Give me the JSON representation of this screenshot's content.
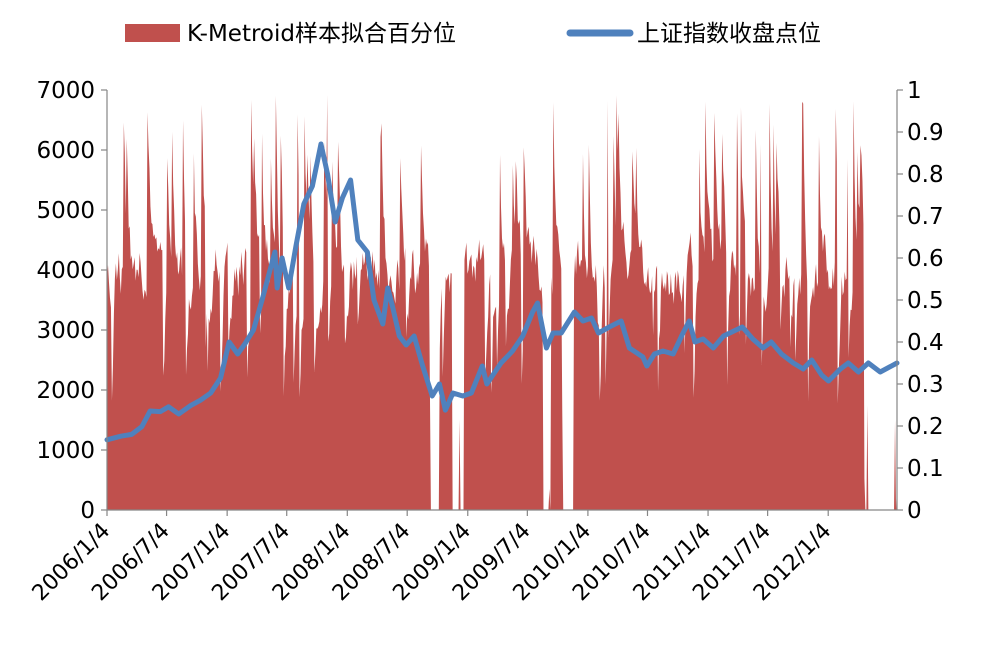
{
  "chart_data": {
    "type": "area+line",
    "title": "",
    "legend": {
      "placement": "top",
      "entries": [
        {
          "name": "K-Metroid样本拟合百分位",
          "kind": "area",
          "color": "#C0504D"
        },
        {
          "name": "上证指数收盘点位",
          "kind": "line",
          "color": "#4F81BD"
        }
      ]
    },
    "x_axis": {
      "type": "date",
      "range": [
        "2006-01-04",
        "2012-07-31"
      ],
      "tick_labels": [
        "2006/1/4",
        "2006/7/4",
        "2007/1/4",
        "2007/7/4",
        "2008/1/4",
        "2008/7/4",
        "2009/1/4",
        "2009/7/4",
        "2010/1/4",
        "2010/7/4",
        "2011/1/4",
        "2011/7/4",
        "2012/1/4"
      ],
      "tick_dates": [
        "2006-01-04",
        "2006-07-04",
        "2007-01-04",
        "2007-07-04",
        "2008-01-04",
        "2008-07-04",
        "2009-01-04",
        "2009-07-04",
        "2010-01-04",
        "2010-07-04",
        "2011-01-04",
        "2011-07-04",
        "2012-01-04"
      ]
    },
    "y_left": {
      "range": [
        0,
        7000
      ],
      "ticks": [
        "0",
        "1000",
        "2000",
        "3000",
        "4000",
        "5000",
        "6000",
        "7000"
      ]
    },
    "y_right": {
      "range": [
        0,
        1
      ],
      "ticks": [
        "0",
        "0.1",
        "0.2",
        "0.3",
        "0.4",
        "0.5",
        "0.6",
        "0.7",
        "0.8",
        "0.9",
        "1"
      ]
    },
    "grid": false,
    "series": [
      {
        "name": "上证指数收盘点位",
        "axis": "left",
        "color": "#4F81BD",
        "points": [
          [
            "2006-01-04",
            1170
          ],
          [
            "2006-02-15",
            1230
          ],
          [
            "2006-03-20",
            1260
          ],
          [
            "2006-04-20",
            1390
          ],
          [
            "2006-05-15",
            1650
          ],
          [
            "2006-06-15",
            1640
          ],
          [
            "2006-07-10",
            1720
          ],
          [
            "2006-08-10",
            1600
          ],
          [
            "2006-09-15",
            1740
          ],
          [
            "2006-10-15",
            1830
          ],
          [
            "2006-11-15",
            1950
          ],
          [
            "2006-12-15",
            2200
          ],
          [
            "2007-01-10",
            2800
          ],
          [
            "2007-02-05",
            2600
          ],
          [
            "2007-02-27",
            2770
          ],
          [
            "2007-03-25",
            3000
          ],
          [
            "2007-04-20",
            3500
          ],
          [
            "2007-05-29",
            4300
          ],
          [
            "2007-06-05",
            3700
          ],
          [
            "2007-06-20",
            4200
          ],
          [
            "2007-07-10",
            3700
          ],
          [
            "2007-08-01",
            4400
          ],
          [
            "2007-08-25",
            5100
          ],
          [
            "2007-09-20",
            5400
          ],
          [
            "2007-10-16",
            6100
          ],
          [
            "2007-11-05",
            5600
          ],
          [
            "2007-11-28",
            4800
          ],
          [
            "2007-12-20",
            5200
          ],
          [
            "2008-01-14",
            5500
          ],
          [
            "2008-02-05",
            4500
          ],
          [
            "2008-03-05",
            4300
          ],
          [
            "2008-03-25",
            3500
          ],
          [
            "2008-04-21",
            3100
          ],
          [
            "2008-05-06",
            3700
          ],
          [
            "2008-05-20",
            3400
          ],
          [
            "2008-06-10",
            2900
          ],
          [
            "2008-07-01",
            2750
          ],
          [
            "2008-07-25",
            2900
          ],
          [
            "2008-08-20",
            2400
          ],
          [
            "2008-09-18",
            1900
          ],
          [
            "2008-10-10",
            2100
          ],
          [
            "2008-10-28",
            1664
          ],
          [
            "2008-11-20",
            1950
          ],
          [
            "2008-12-20",
            1900
          ],
          [
            "2009-01-15",
            1950
          ],
          [
            "2009-02-17",
            2400
          ],
          [
            "2009-03-03",
            2100
          ],
          [
            "2009-04-15",
            2450
          ],
          [
            "2009-05-20",
            2650
          ],
          [
            "2009-06-20",
            2900
          ],
          [
            "2009-07-20",
            3300
          ],
          [
            "2009-08-04",
            3450
          ],
          [
            "2009-08-31",
            2700
          ],
          [
            "2009-09-20",
            2950
          ],
          [
            "2009-10-15",
            2950
          ],
          [
            "2009-11-24",
            3300
          ],
          [
            "2009-12-20",
            3150
          ],
          [
            "2010-01-15",
            3200
          ],
          [
            "2010-02-05",
            2950
          ],
          [
            "2010-03-10",
            3050
          ],
          [
            "2010-04-15",
            3150
          ],
          [
            "2010-05-10",
            2700
          ],
          [
            "2010-06-20",
            2550
          ],
          [
            "2010-07-02",
            2400
          ],
          [
            "2010-07-25",
            2600
          ],
          [
            "2010-08-20",
            2650
          ],
          [
            "2010-09-20",
            2600
          ],
          [
            "2010-10-20",
            2950
          ],
          [
            "2010-11-08",
            3150
          ],
          [
            "2010-11-25",
            2800
          ],
          [
            "2010-12-20",
            2850
          ],
          [
            "2011-01-20",
            2700
          ],
          [
            "2011-02-20",
            2900
          ],
          [
            "2011-04-18",
            3050
          ],
          [
            "2011-05-20",
            2850
          ],
          [
            "2011-06-20",
            2700
          ],
          [
            "2011-07-15",
            2800
          ],
          [
            "2011-08-15",
            2600
          ],
          [
            "2011-09-20",
            2450
          ],
          [
            "2011-10-20",
            2350
          ],
          [
            "2011-11-15",
            2500
          ],
          [
            "2011-12-15",
            2250
          ],
          [
            "2012-01-05",
            2150
          ],
          [
            "2012-02-10",
            2350
          ],
          [
            "2012-03-05",
            2450
          ],
          [
            "2012-04-05",
            2300
          ],
          [
            "2012-05-05",
            2450
          ],
          [
            "2012-06-10",
            2300
          ],
          [
            "2012-07-31",
            2450
          ]
        ]
      }
    ]
  }
}
